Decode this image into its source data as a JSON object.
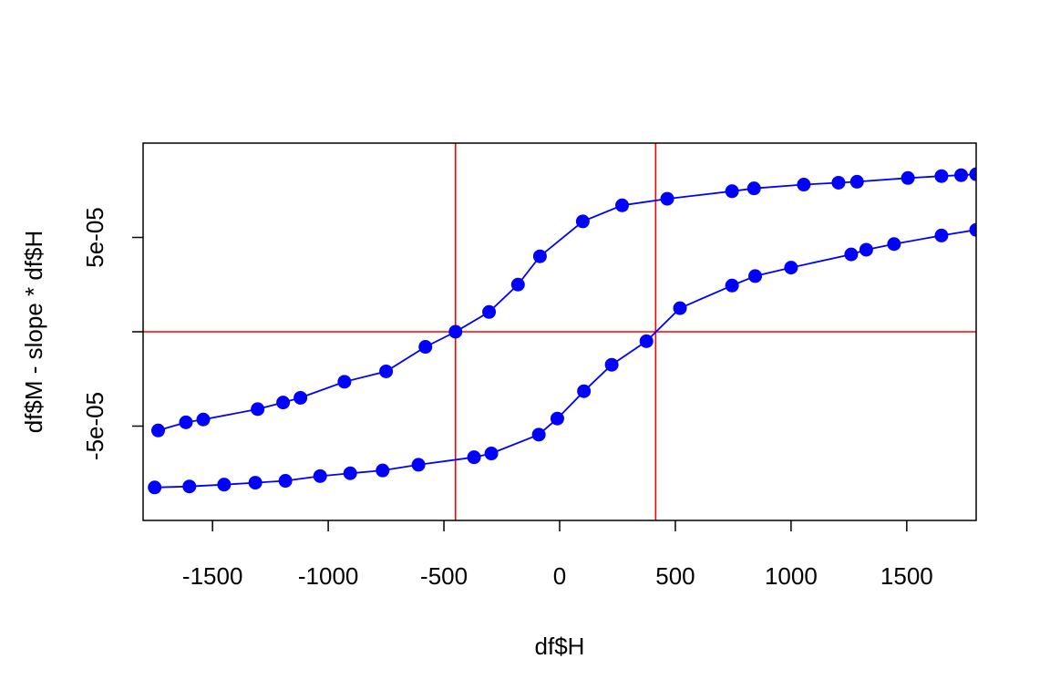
{
  "chart_data": {
    "type": "scatter",
    "xlabel": "df$H",
    "ylabel": "df$M - slope * df$H",
    "xlim": [
      -1800,
      1800
    ],
    "ylim": [
      -0.0001,
      0.0001
    ],
    "x_ticks": [
      -1500,
      -1000,
      -500,
      0,
      500,
      1000,
      1500
    ],
    "x_tick_labels": [
      "-1500",
      "-1000",
      "-500",
      "0",
      "500",
      "1000",
      "1500"
    ],
    "y_ticks": [
      -5e-05,
      0,
      5e-05
    ],
    "y_tick_labels": [
      "-5e-05",
      "",
      "5e-05"
    ],
    "reference_lines": {
      "vertical": [
        -450,
        415
      ],
      "horizontal": [
        0
      ],
      "color": "#ff0000"
    },
    "series_color": "#0000ff",
    "series": [
      {
        "points": [
          [
            -1735,
            -5.23e-05
          ],
          [
            -1615,
            -4.8e-05
          ],
          [
            -1540,
            -4.65e-05
          ],
          [
            -1305,
            -4.1e-05
          ],
          [
            -1195,
            -3.75e-05
          ],
          [
            -1120,
            -3.5e-05
          ],
          [
            -930,
            -2.65e-05
          ],
          [
            -750,
            -2.1e-05
          ],
          [
            -580,
            -8e-06
          ],
          [
            -450,
            0.0
          ],
          [
            -305,
            1.05e-05
          ],
          [
            -180,
            2.5e-05
          ],
          [
            -85,
            4e-05
          ],
          [
            100,
            5.85e-05
          ],
          [
            270,
            6.7e-05
          ],
          [
            465,
            7.05e-05
          ],
          [
            745,
            7.45e-05
          ],
          [
            840,
            7.6e-05
          ],
          [
            1055,
            7.8e-05
          ],
          [
            1205,
            7.9e-05
          ],
          [
            1285,
            7.95e-05
          ],
          [
            1505,
            8.15e-05
          ],
          [
            1650,
            8.25e-05
          ],
          [
            1735,
            8.3e-05
          ],
          [
            1800,
            8.35e-05
          ]
        ]
      },
      {
        "points": [
          [
            -1750,
            -8.25e-05
          ],
          [
            -1600,
            -8.2e-05
          ],
          [
            -1450,
            -8.1e-05
          ],
          [
            -1315,
            -8e-05
          ],
          [
            -1185,
            -7.9e-05
          ],
          [
            -1035,
            -7.65e-05
          ],
          [
            -905,
            -7.5e-05
          ],
          [
            -765,
            -7.35e-05
          ],
          [
            -610,
            -7.05e-05
          ],
          [
            -370,
            -6.65e-05
          ],
          [
            -295,
            -6.45e-05
          ],
          [
            -90,
            -5.45e-05
          ],
          [
            -10,
            -4.6e-05
          ],
          [
            105,
            -3.15e-05
          ],
          [
            225,
            -1.75e-05
          ],
          [
            375,
            -5e-06
          ],
          [
            520,
            1.25e-05
          ],
          [
            745,
            2.45e-05
          ],
          [
            845,
            2.95e-05
          ],
          [
            1000,
            3.4e-05
          ],
          [
            1260,
            4.1e-05
          ],
          [
            1325,
            4.35e-05
          ],
          [
            1445,
            4.65e-05
          ],
          [
            1650,
            5.1e-05
          ],
          [
            1800,
            5.4e-05
          ]
        ]
      }
    ]
  }
}
